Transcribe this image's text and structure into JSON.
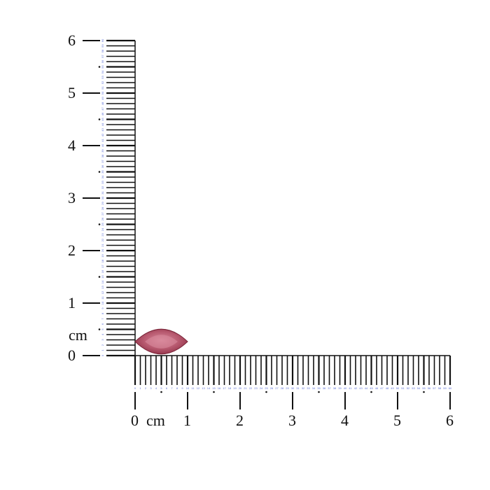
{
  "unit_label": "cm",
  "cm_labels": [
    "0",
    "1",
    "2",
    "3",
    "4",
    "5",
    "6"
  ],
  "mm_labels": [
    "0",
    "1",
    "2",
    "3",
    "4",
    "5",
    "6",
    "7",
    "8",
    "9",
    "10",
    "11",
    "12",
    "13",
    "14",
    "15",
    "16",
    "17",
    "18",
    "19",
    "20",
    "21",
    "22",
    "23",
    "24",
    "25",
    "26",
    "27",
    "28",
    "29",
    "30",
    "31",
    "32",
    "33",
    "34",
    "35",
    "36",
    "37",
    "38",
    "39",
    "40",
    "41",
    "42",
    "43",
    "44",
    "45",
    "46",
    "47",
    "48",
    "49",
    "50",
    "51",
    "52",
    "53",
    "54",
    "55",
    "56",
    "57",
    "58",
    "59",
    "60"
  ],
  "colors": {
    "ticks": "#111111",
    "mm_labels": "#5b6fd6",
    "gem_dark": "#8e2f45",
    "gem_light": "#d98a9c"
  },
  "gem": {
    "shape": "marquise",
    "length_cm": 1.0,
    "width_cm": 0.5
  }
}
